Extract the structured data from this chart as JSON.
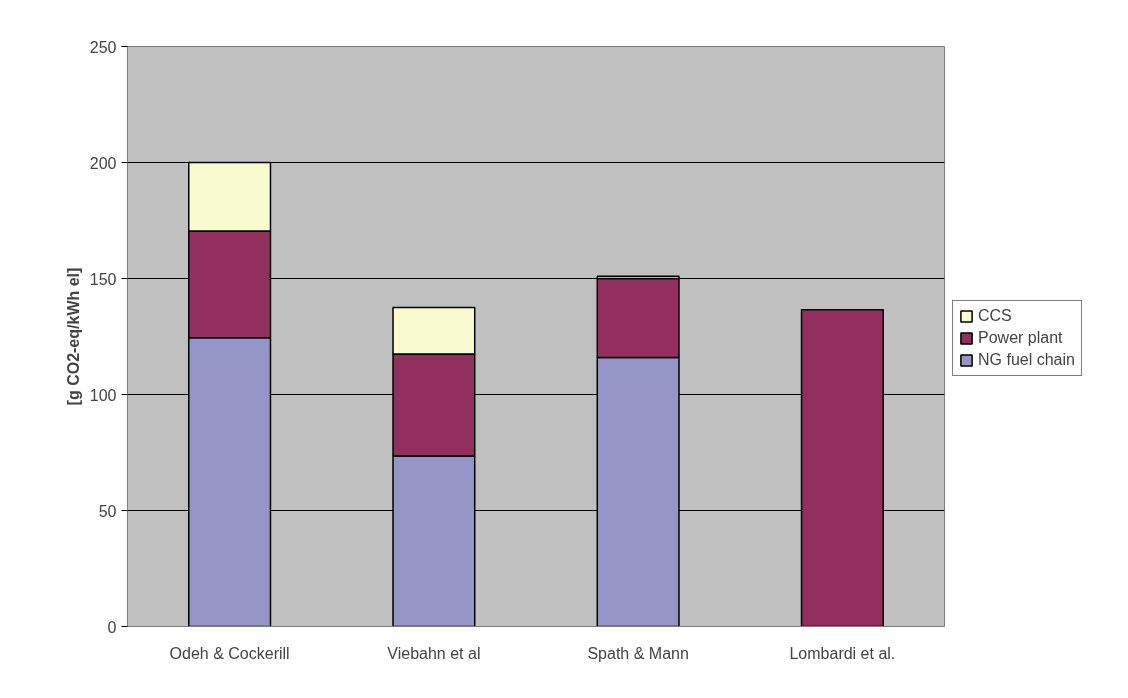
{
  "chart_data": {
    "type": "bar",
    "stacked": true,
    "ylabel": "[g CO2-eq/kWh el]",
    "categories": [
      "Odeh & Cockerill",
      "Viebahn et al",
      "Spath & Mann",
      "Lombardi et al."
    ],
    "series": [
      {
        "name": "NG fuel chain",
        "color": "#9595c8",
        "values": [
          124.5,
          73.5,
          116,
          null
        ]
      },
      {
        "name": "Power plant",
        "color": "#91305e",
        "values": [
          46,
          44,
          34,
          136.5
        ]
      },
      {
        "name": "CCS",
        "color": "#fafad0",
        "values": [
          29.5,
          20,
          1,
          null
        ]
      }
    ],
    "ylim": [
      0,
      250
    ],
    "yticks": [
      0,
      50,
      100,
      150,
      200,
      250
    ],
    "grid": "y",
    "legend": "right"
  }
}
